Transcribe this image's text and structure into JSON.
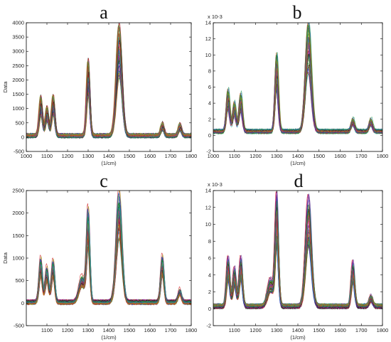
{
  "chart_data": [
    {
      "panel": "a",
      "type": "line",
      "xlabel": "(1/cm)",
      "ylabel": "Data",
      "xlim": [
        1000,
        1800
      ],
      "ylim": [
        -500,
        4000
      ],
      "xticks": [
        "1000",
        "1100",
        "1200",
        "1300",
        "1400",
        "1500",
        "1600",
        "1700",
        "1800"
      ],
      "yticks": [
        "-500",
        "0",
        "500",
        "1000",
        "1500",
        "2000",
        "2500",
        "3000",
        "3500",
        "4000"
      ],
      "exponent_label": "",
      "peaks": [
        {
          "x": 1070,
          "y": 1350
        },
        {
          "x": 1100,
          "y": 1000
        },
        {
          "x": 1130,
          "y": 1400
        },
        {
          "x": 1300,
          "y": 2600
        },
        {
          "x": 1450,
          "y": 3800
        },
        {
          "x": 1660,
          "y": 450
        },
        {
          "x": 1745,
          "y": 420
        }
      ],
      "baseline": 50,
      "spectra_count": 60
    },
    {
      "panel": "b",
      "type": "line",
      "xlabel": "(1/cm)",
      "ylabel": "",
      "xlim": [
        1000,
        1800
      ],
      "ylim": [
        -2,
        14
      ],
      "xticks": [
        "1000",
        "1100",
        "1200",
        "1300",
        "1400",
        "1500",
        "1600",
        "1700",
        "1800"
      ],
      "yticks": [
        "-2",
        "0",
        "2",
        "4",
        "6",
        "8",
        "10",
        "12",
        "14"
      ],
      "exponent_label": "x 10-3",
      "peaks": [
        {
          "x": 1070,
          "y": 5.5
        },
        {
          "x": 1100,
          "y": 4.0
        },
        {
          "x": 1130,
          "y": 5.0
        },
        {
          "x": 1300,
          "y": 9.8
        },
        {
          "x": 1450,
          "y": 13.5
        },
        {
          "x": 1660,
          "y": 2.0
        },
        {
          "x": 1745,
          "y": 2.0
        }
      ],
      "baseline": 0.5,
      "spectra_count": 60
    },
    {
      "panel": "c",
      "type": "line",
      "xlabel": "(1/cm)",
      "ylabel": "Data",
      "xlim": [
        1000,
        1800
      ],
      "ylim": [
        -500,
        2500
      ],
      "xticks": [
        "1100",
        "1200",
        "1300",
        "1400",
        "1500",
        "1600",
        "1700",
        "1800"
      ],
      "yticks": [
        "-500",
        "0",
        "500",
        "1000",
        "1500",
        "2000",
        "2500"
      ],
      "exponent_label": "",
      "peaks": [
        {
          "x": 1070,
          "y": 1000
        },
        {
          "x": 1100,
          "y": 800
        },
        {
          "x": 1130,
          "y": 950
        },
        {
          "x": 1270,
          "y": 600
        },
        {
          "x": 1300,
          "y": 2050
        },
        {
          "x": 1450,
          "y": 2450
        },
        {
          "x": 1660,
          "y": 1050
        },
        {
          "x": 1745,
          "y": 300
        }
      ],
      "baseline": 20,
      "spectra_count": 60
    },
    {
      "panel": "d",
      "type": "line",
      "xlabel": "(1/cm)",
      "ylabel": "",
      "xlim": [
        1000,
        1800
      ],
      "ylim": [
        -2,
        14
      ],
      "xticks": [
        "1100",
        "1200",
        "1300",
        "1400",
        "1500",
        "1600",
        "1700",
        "1800"
      ],
      "yticks": [
        "-2",
        "0",
        "2",
        "4",
        "6",
        "8",
        "10",
        "12",
        "14"
      ],
      "exponent_label": "x 10-3",
      "peaks": [
        {
          "x": 1070,
          "y": 6.0
        },
        {
          "x": 1100,
          "y": 4.8
        },
        {
          "x": 1130,
          "y": 6.0
        },
        {
          "x": 1270,
          "y": 3.5
        },
        {
          "x": 1300,
          "y": 13.0
        },
        {
          "x": 1450,
          "y": 13.0
        },
        {
          "x": 1660,
          "y": 5.5
        },
        {
          "x": 1745,
          "y": 1.5
        }
      ],
      "baseline": 0.3,
      "spectra_count": 60
    }
  ],
  "series_colors": [
    "#1f3fd0",
    "#1a8a1a",
    "#d01a1a",
    "#1ab0b0",
    "#b01ab0",
    "#909010",
    "#202020",
    "#5a2a8a",
    "#2aa060",
    "#c06020"
  ]
}
